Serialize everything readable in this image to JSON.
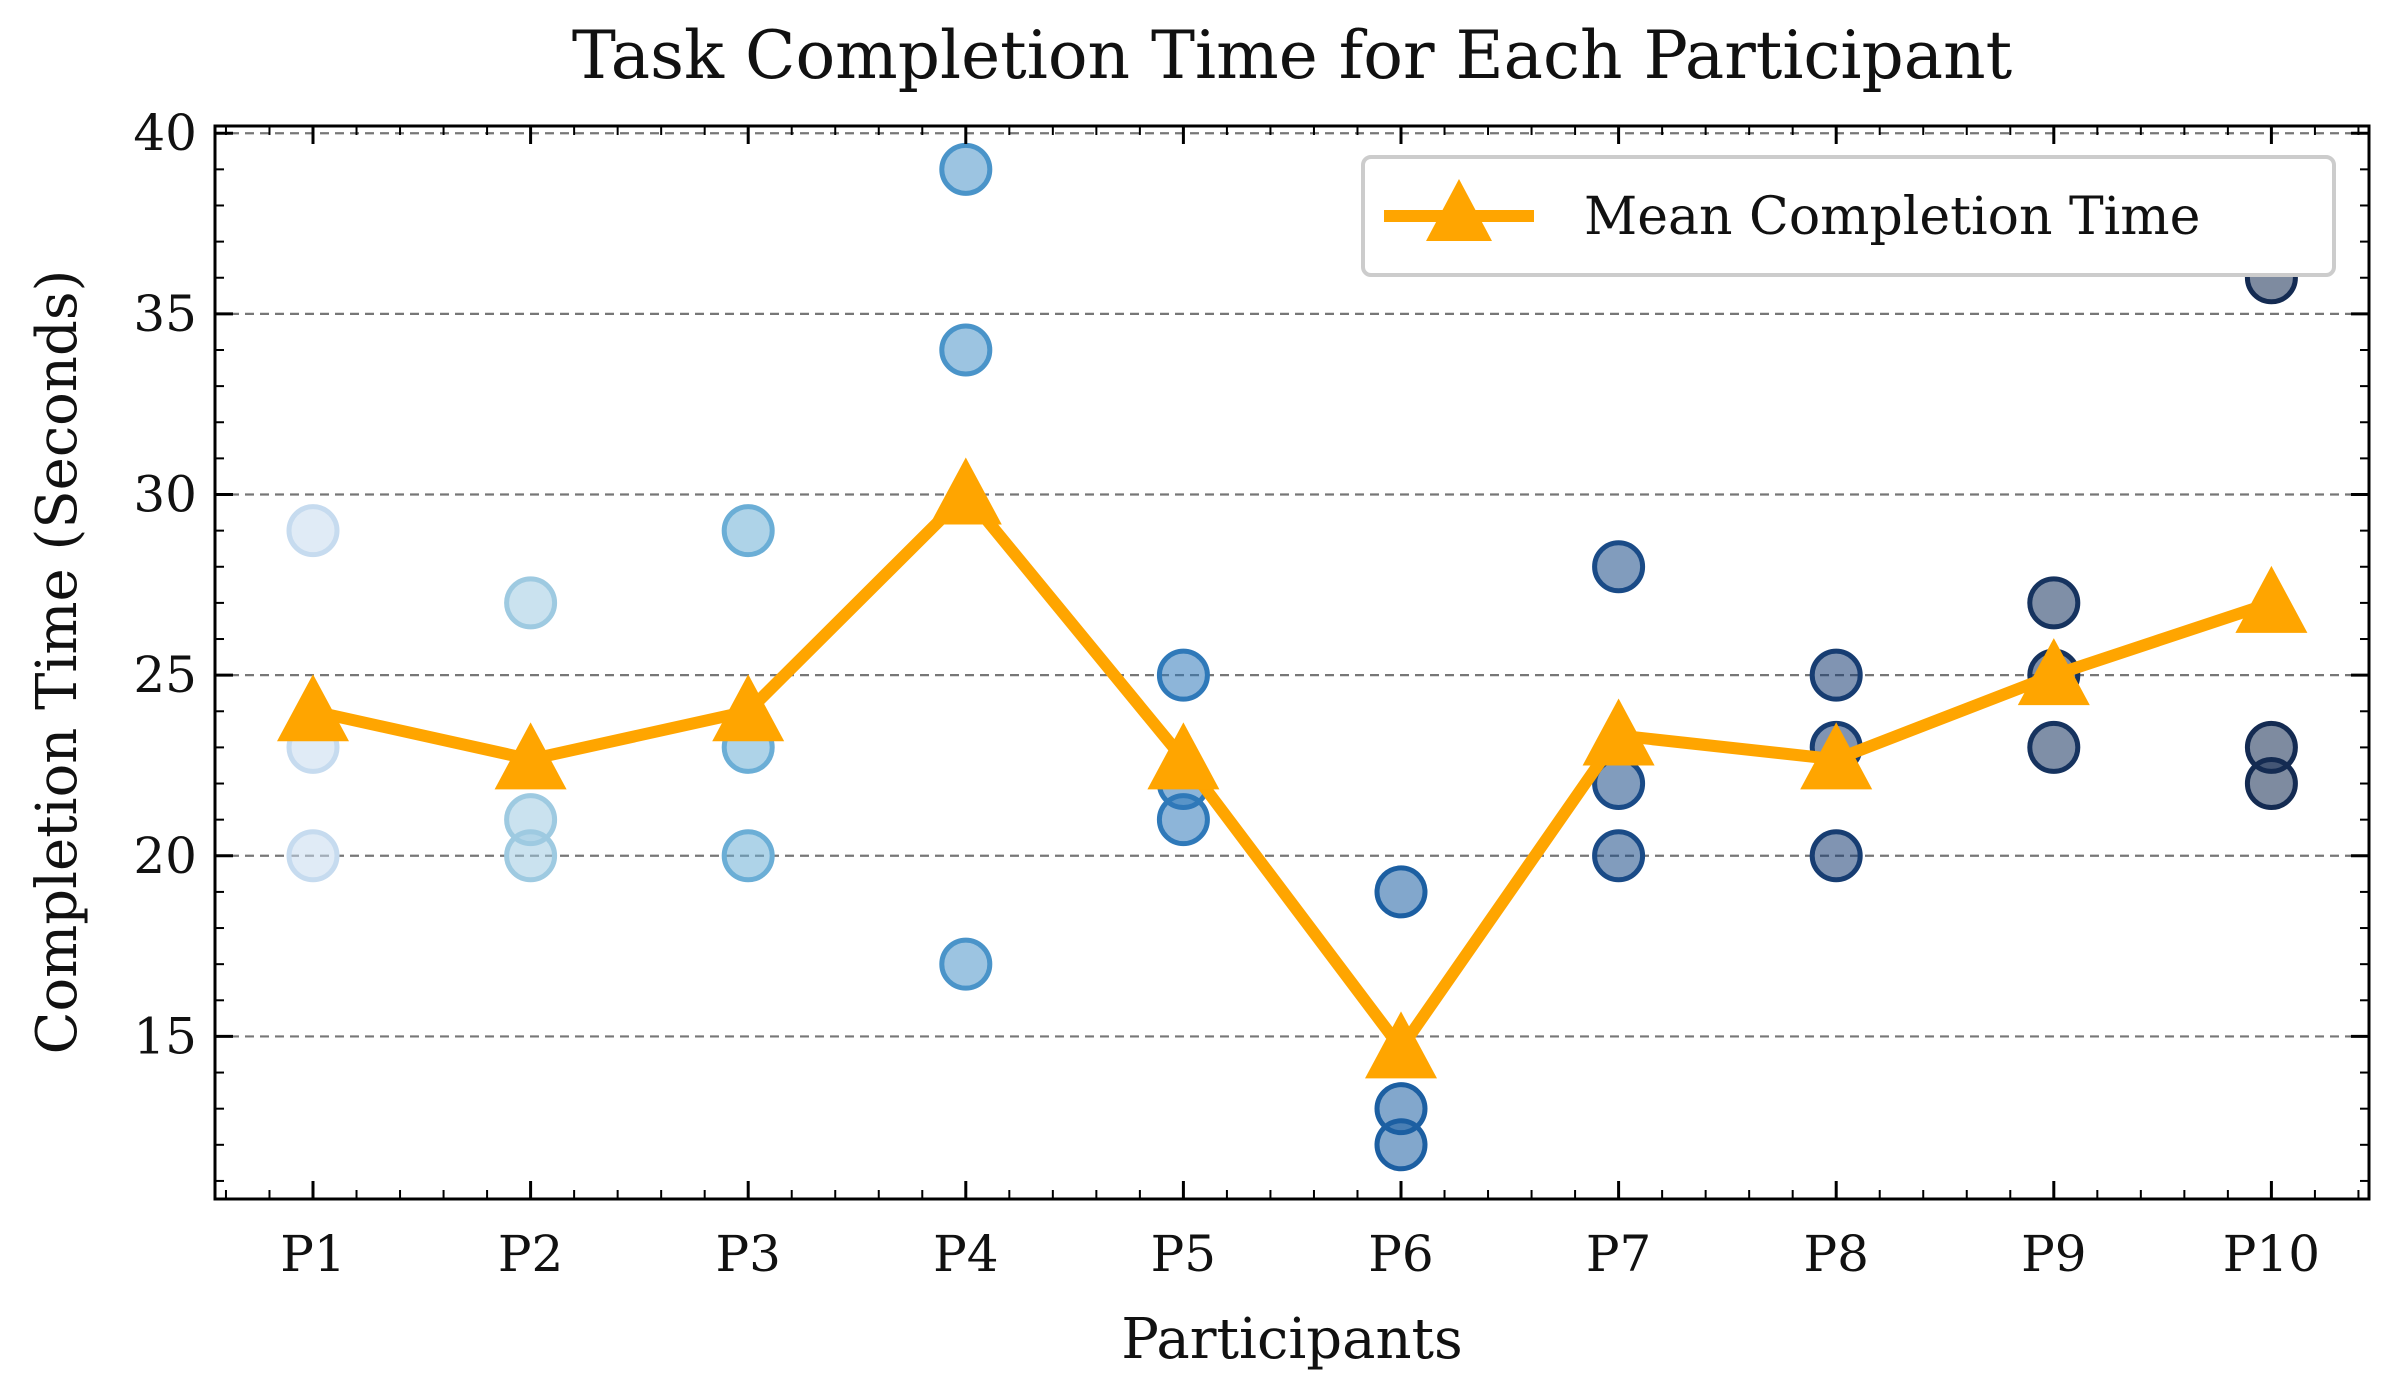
{
  "chart_data": {
    "type": "scatter",
    "title": "Task Completion Time for Each Participant",
    "xlabel": "Participants",
    "ylabel": "Completion Time (Seconds)",
    "categories": [
      "P1",
      "P2",
      "P3",
      "P4",
      "P5",
      "P6",
      "P7",
      "P8",
      "P9",
      "P10"
    ],
    "ylim": [
      10.5,
      40.2
    ],
    "yticks": [
      15,
      20,
      25,
      30,
      35,
      40
    ],
    "grid": "y-dashed",
    "legend_position": "top-right",
    "individual_times": [
      [
        29,
        23,
        20
      ],
      [
        27,
        21,
        20
      ],
      [
        29,
        23,
        20
      ],
      [
        39,
        34,
        17
      ],
      [
        25,
        22,
        21
      ],
      [
        19,
        13,
        12
      ],
      [
        28,
        22,
        20
      ],
      [
        25,
        23,
        20
      ],
      [
        27,
        25,
        23
      ],
      [
        36,
        23,
        22
      ]
    ],
    "point_colors": [
      "#c6dbef",
      "#9ecae1",
      "#6baed6",
      "#4a94c9",
      "#2f79b9",
      "#1c5fa2",
      "#1a4b87",
      "#173d72",
      "#16335f",
      "#142b52"
    ],
    "series": [
      {
        "name": "Mean Completion Time",
        "values": [
          24.0,
          22.67,
          24.0,
          30.0,
          22.67,
          14.67,
          23.33,
          22.67,
          25.0,
          27.0
        ],
        "color": "#ffa500",
        "marker": "triangle"
      }
    ]
  }
}
